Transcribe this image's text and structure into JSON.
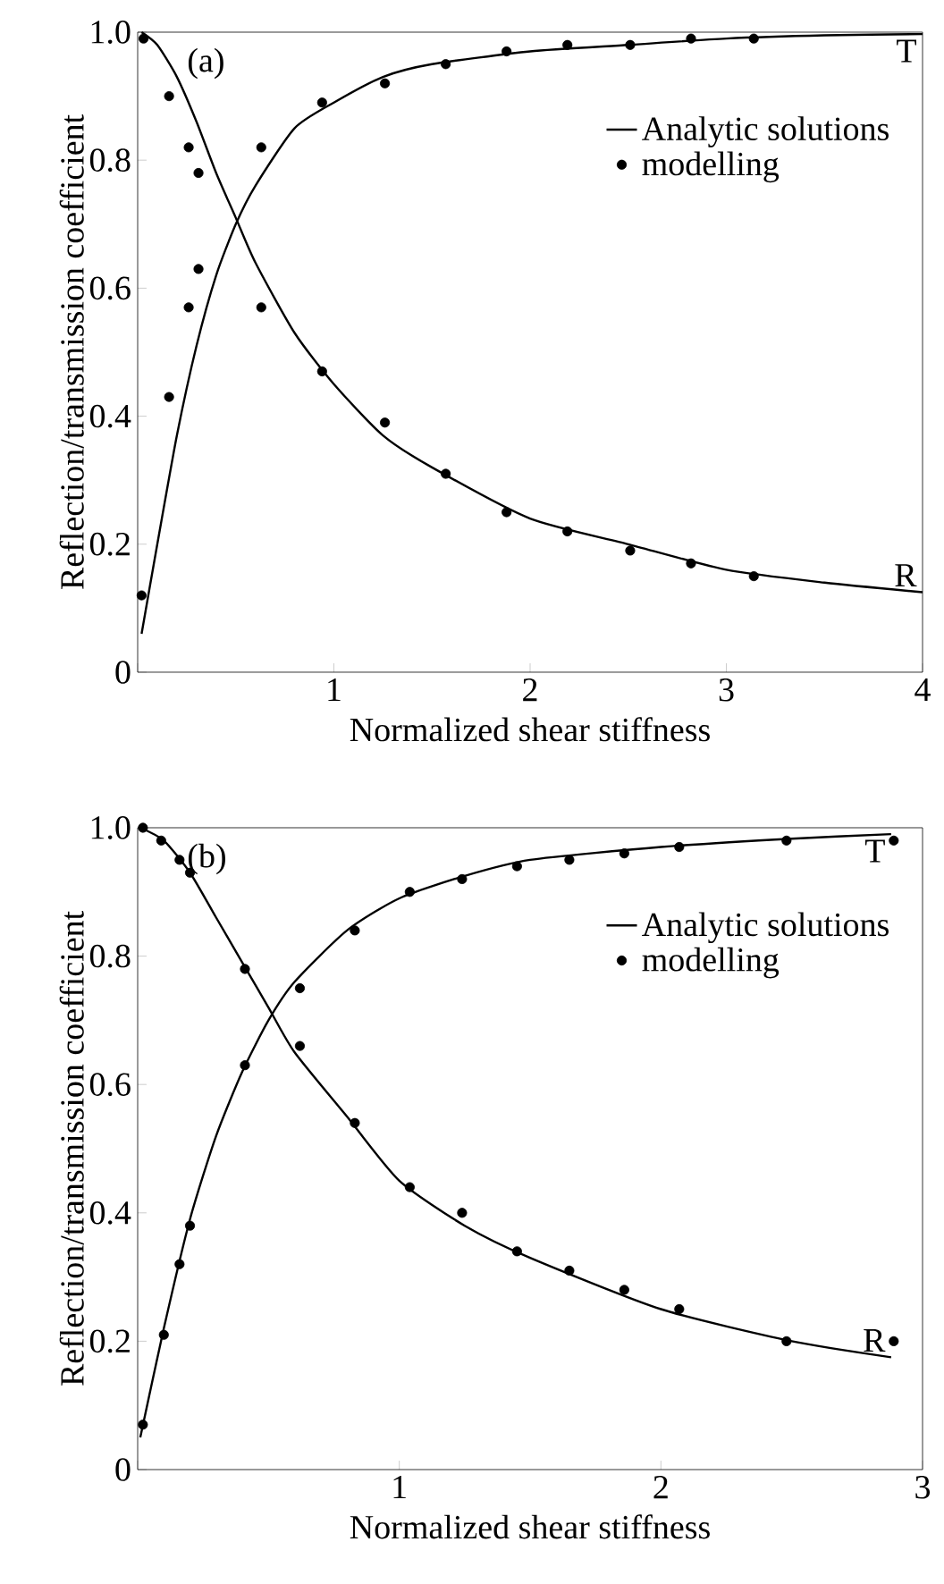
{
  "chart_data": [
    {
      "type": "line",
      "xlabel": "Normalized shear stiffness",
      "ylabel": "Reflection/transmission coefficient",
      "xlim": [
        0,
        4
      ],
      "ylim": [
        0,
        1.0
      ],
      "xticks": [
        {
          "value": 0,
          "label": null
        },
        1,
        2,
        3,
        4
      ],
      "yticks": [
        0,
        0.2,
        0.4,
        0.6,
        0.8,
        {
          "value": 1.0,
          "label": "1.0"
        }
      ],
      "legend": "top right",
      "annotations": [
        "(a)",
        "T",
        "R"
      ],
      "series": [
        {
          "name": "Analytic solutions",
          "color": "#000000",
          "marker": "none",
          "line_style": "solid",
          "x": [
            0.02,
            0.1,
            0.2,
            0.3,
            0.4,
            0.5,
            0.6,
            0.8,
            1.0,
            1.25,
            1.5,
            2,
            2.5,
            3,
            3.5,
            4
          ],
          "values": [
            0.06,
            0.2,
            0.37,
            0.51,
            0.62,
            0.7,
            0.76,
            0.85,
            0.89,
            0.93,
            0.95,
            0.97,
            0.98,
            0.99,
            0.995,
            0.997
          ]
        },
        {
          "color": "#000000",
          "marker": "none",
          "line_style": "solid",
          "x": [
            0.02,
            0.1,
            0.2,
            0.3,
            0.4,
            0.5,
            0.6,
            0.8,
            1.0,
            1.25,
            1.5,
            2,
            2.5,
            3,
            3.5,
            4
          ],
          "values": [
            1.0,
            0.98,
            0.93,
            0.86,
            0.78,
            0.71,
            0.64,
            0.53,
            0.45,
            0.37,
            0.32,
            0.24,
            0.2,
            0.16,
            0.14,
            0.125
          ]
        },
        {
          "name": "modelling",
          "type": "scatter",
          "color": "#000000",
          "marker": "circle",
          "x": [
            0.02,
            0.16,
            0.26,
            0.31,
            0.63,
            0.94,
            1.26,
            1.57,
            1.88,
            2.19,
            2.51,
            2.82,
            3.14,
            0.03,
            0.16,
            0.26,
            0.31,
            0.63,
            0.94,
            1.26,
            1.57,
            1.88,
            2.19,
            2.51,
            2.82,
            3.14
          ],
          "values": [
            0.12,
            0.43,
            0.57,
            0.63,
            0.82,
            0.89,
            0.92,
            0.95,
            0.97,
            0.98,
            0.98,
            0.99,
            0.99,
            0.99,
            0.9,
            0.82,
            0.78,
            0.57,
            0.47,
            0.39,
            0.31,
            0.25,
            0.22,
            0.19,
            0.17,
            0.15
          ]
        }
      ]
    },
    {
      "type": "line",
      "xlabel": "Normalized shear stiffness",
      "ylabel": "Reflection/transmission coefficient",
      "xlim": [
        0,
        3
      ],
      "ylim": [
        0,
        1.0
      ],
      "xticks": [
        {
          "value": 0,
          "label": null
        },
        1,
        2,
        3
      ],
      "yticks": [
        0,
        0.2,
        0.4,
        0.6,
        0.8,
        {
          "value": 1.0,
          "label": "1.0"
        }
      ],
      "legend": "top right",
      "annotations": [
        "(b)",
        "T",
        "R"
      ],
      "series": [
        {
          "name": "Analytic solutions",
          "color": "#000000",
          "marker": "none",
          "line_style": "solid",
          "x": [
            0.01,
            0.1,
            0.2,
            0.3,
            0.4,
            0.5,
            0.6,
            0.8,
            1.0,
            1.25,
            1.5,
            2,
            2.5,
            2.88
          ],
          "values": [
            0.05,
            0.22,
            0.39,
            0.52,
            0.62,
            0.7,
            0.76,
            0.84,
            0.89,
            0.925,
            0.95,
            0.97,
            0.983,
            0.99
          ]
        },
        {
          "color": "#000000",
          "marker": "none",
          "line_style": "solid",
          "x": [
            0.01,
            0.1,
            0.2,
            0.3,
            0.4,
            0.5,
            0.6,
            0.8,
            1.0,
            1.25,
            1.5,
            2,
            2.5,
            2.88
          ],
          "values": [
            1.0,
            0.98,
            0.93,
            0.86,
            0.79,
            0.72,
            0.65,
            0.55,
            0.45,
            0.38,
            0.33,
            0.25,
            0.2,
            0.175
          ]
        },
        {
          "name": "modelling",
          "type": "scatter",
          "color": "#000000",
          "marker": "circle",
          "x": [
            0.02,
            0.1,
            0.16,
            0.2,
            0.41,
            0.62,
            0.83,
            1.04,
            1.24,
            1.45,
            1.65,
            1.86,
            2.07,
            2.48,
            2.89,
            0.02,
            0.09,
            0.16,
            0.2,
            0.41,
            0.62,
            0.83,
            1.04,
            1.24,
            1.45,
            1.65,
            1.86,
            2.07,
            2.48,
            2.89
          ],
          "values": [
            0.07,
            0.21,
            0.32,
            0.38,
            0.63,
            0.75,
            0.84,
            0.9,
            0.92,
            0.94,
            0.95,
            0.96,
            0.97,
            0.98,
            0.98,
            1.0,
            0.98,
            0.95,
            0.93,
            0.78,
            0.66,
            0.54,
            0.44,
            0.4,
            0.34,
            0.31,
            0.28,
            0.25,
            0.2,
            0.2
          ]
        }
      ]
    }
  ]
}
